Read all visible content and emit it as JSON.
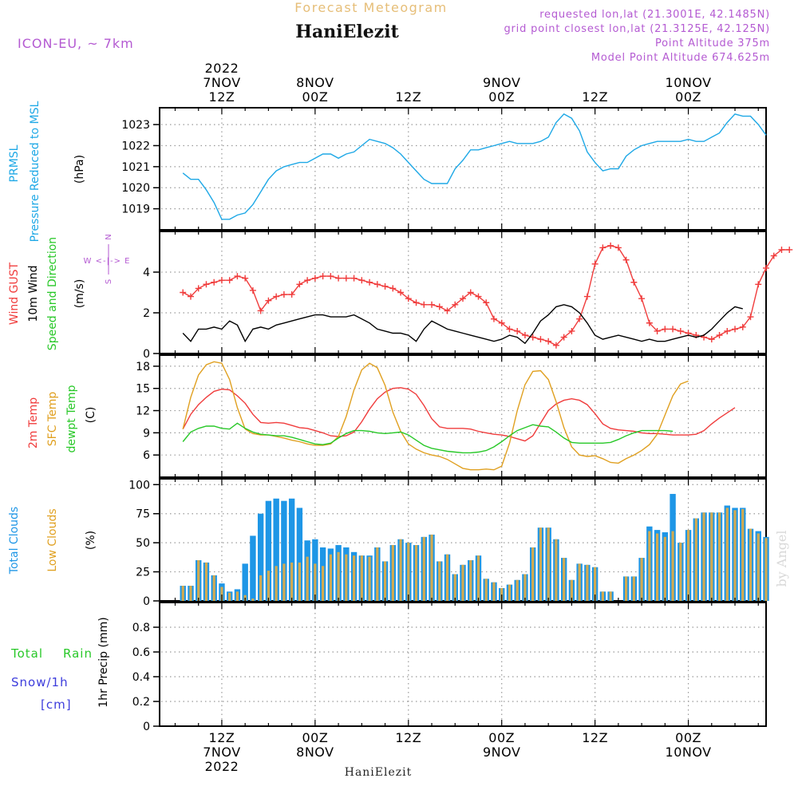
{
  "header": {
    "top_title": "Forecast Meteogram",
    "location": "HaniElezit",
    "model": "ICON-EU, ~ 7km",
    "info_lines": [
      "requested lon,lat (21.3001E, 42.1485N)",
      "grid point closest lon,lat (21.3125E, 42.125N)",
      "Point Altitude 375m",
      "Model Point Altitude 674.625m"
    ],
    "watermark": "by Angel",
    "footer_location": "HaniElezit"
  },
  "time_axis": {
    "top_labels": [
      {
        "h": 12,
        "lines": [
          "2022",
          "7NOV",
          "12Z"
        ]
      },
      {
        "h": 24,
        "lines": [
          "8NOV",
          "00Z"
        ]
      },
      {
        "h": 36,
        "lines": [
          "12Z"
        ]
      },
      {
        "h": 48,
        "lines": [
          "9NOV",
          "00Z"
        ]
      },
      {
        "h": 60,
        "lines": [
          "12Z"
        ]
      },
      {
        "h": 72,
        "lines": [
          "10NOV",
          "00Z"
        ]
      }
    ],
    "bottom_labels": [
      {
        "h": 12,
        "lines": [
          "12Z",
          "7NOV",
          "2022"
        ]
      },
      {
        "h": 24,
        "lines": [
          "00Z",
          "8NOV"
        ]
      },
      {
        "h": 36,
        "lines": [
          "12Z"
        ]
      },
      {
        "h": 48,
        "lines": [
          "00Z",
          "9NOV"
        ]
      },
      {
        "h": 60,
        "lines": [
          "12Z"
        ]
      },
      {
        "h": 72,
        "lines": [
          "00Z",
          "10NOV"
        ]
      }
    ]
  },
  "panels": {
    "pressure": {
      "label1": "PRMSL",
      "label2": "Pressure Reduced to MSL",
      "unit": "(hPa)"
    },
    "wind": {
      "label_gust": "Wind GUST",
      "label_wind": "10m Wind",
      "label_dir": "Speed and Direction",
      "unit": "(m/s)",
      "compass": {
        "n": "N",
        "s": "S",
        "row": "W <-|-> E"
      }
    },
    "temp": {
      "label_2m": "2m Temp",
      "label_sfc": "SFC Temp",
      "label_dew": "dewpt Temp",
      "unit": "(C)"
    },
    "clouds": {
      "label_total": "Total Clouds",
      "label_low": "Low Clouds",
      "unit": "(%)"
    },
    "precip": {
      "label_total": "Total",
      "label_rain": "Rain",
      "label_snow": "Snow/1h",
      "label_cm": "[cm]",
      "ylabel": "1hr Precip (mm)"
    }
  },
  "colors": {
    "pressure": "#1ea8e6",
    "gust": "#f03c3c",
    "wind": "#000000",
    "t2m": "#f03c3c",
    "sfc": "#e0a020",
    "dew": "#28c828",
    "total_clouds": "#1e96e6",
    "low_clouds": "#d2aa50",
    "header_purple": "#b45ad2",
    "header_orange": "#e6be78",
    "rain_green": "#28c828",
    "snow_blue": "#3c3cdc"
  },
  "chart_data": [
    {
      "type": "line",
      "title": "PRMSL Pressure Reduced to MSL",
      "ylabel": "(hPa)",
      "ylim": [
        1018,
        1023.8
      ],
      "yticks": [
        1019,
        1020,
        1021,
        1022,
        1023
      ],
      "x_hours_start": 7,
      "x_step_h": 1,
      "series": [
        {
          "name": "PRMSL",
          "values": [
            1020.7,
            1020.4,
            1020.4,
            1019.9,
            1019.3,
            1018.5,
            1018.5,
            1018.7,
            1018.8,
            1019.2,
            1019.8,
            1020.4,
            1020.8,
            1021.0,
            1021.1,
            1021.2,
            1021.2,
            1021.4,
            1021.6,
            1021.6,
            1021.4,
            1021.6,
            1021.7,
            1022.0,
            1022.3,
            1022.2,
            1022.1,
            1021.9,
            1021.6,
            1021.2,
            1020.8,
            1020.4,
            1020.2,
            1020.2,
            1020.2,
            1020.9,
            1021.3,
            1021.8,
            1021.8,
            1021.9,
            1022.0,
            1022.1,
            1022.2,
            1022.1,
            1022.1,
            1022.1,
            1022.2,
            1022.4,
            1023.1,
            1023.5,
            1023.3,
            1022.7,
            1021.7,
            1021.2,
            1020.8,
            1020.9,
            1020.9,
            1021.5,
            1021.8,
            1022.0,
            1022.1,
            1022.2,
            1022.2,
            1022.2,
            1022.2,
            1022.3,
            1022.2,
            1022.2,
            1022.4,
            1022.6,
            1023.1,
            1023.5,
            1023.4,
            1023.4,
            1023.0,
            1022.5
          ]
        }
      ]
    },
    {
      "type": "line",
      "title": "Wind GUST / 10m Wind Speed and Direction",
      "ylabel": "(m/s)",
      "ylim": [
        0,
        6
      ],
      "yticks": [
        0,
        2,
        4
      ],
      "x_hours_start": 7,
      "x_step_h": 1,
      "series": [
        {
          "name": "Wind GUST",
          "values": [
            3.0,
            2.8,
            3.2,
            3.4,
            3.5,
            3.6,
            3.6,
            3.8,
            3.7,
            3.1,
            2.1,
            2.6,
            2.8,
            2.9,
            2.9,
            3.4,
            3.6,
            3.7,
            3.8,
            3.8,
            3.7,
            3.7,
            3.7,
            3.6,
            3.5,
            3.4,
            3.3,
            3.2,
            3.0,
            2.7,
            2.5,
            2.4,
            2.4,
            2.3,
            2.1,
            2.4,
            2.7,
            3.0,
            2.8,
            2.5,
            1.7,
            1.5,
            1.2,
            1.1,
            0.9,
            0.8,
            0.7,
            0.6,
            0.4,
            0.8,
            1.1,
            1.7,
            2.8,
            4.4,
            5.2,
            5.3,
            5.2,
            4.6,
            3.5,
            2.7,
            1.5,
            1.1,
            1.2,
            1.2,
            1.1,
            1.0,
            0.9,
            0.8,
            0.7,
            0.9,
            1.1,
            1.2,
            1.3,
            1.8,
            3.4,
            4.2,
            4.8,
            5.1,
            5.1
          ]
        },
        {
          "name": "10m Wind",
          "values": [
            1.0,
            0.6,
            1.2,
            1.2,
            1.3,
            1.2,
            1.6,
            1.4,
            0.6,
            1.2,
            1.3,
            1.2,
            1.4,
            1.5,
            1.6,
            1.7,
            1.8,
            1.9,
            1.9,
            1.8,
            1.8,
            1.8,
            1.9,
            1.7,
            1.5,
            1.2,
            1.1,
            1.0,
            1.0,
            0.9,
            0.6,
            1.2,
            1.6,
            1.4,
            1.2,
            1.1,
            1.0,
            0.9,
            0.8,
            0.7,
            0.6,
            0.7,
            0.9,
            0.8,
            0.5,
            1.0,
            1.6,
            1.9,
            2.3,
            2.4,
            2.3,
            2.0,
            1.5,
            0.9,
            0.7,
            0.8,
            0.9,
            0.8,
            0.7,
            0.6,
            0.7,
            0.6,
            0.6,
            0.7,
            0.8,
            0.9,
            0.8,
            0.9,
            1.2,
            1.6,
            2.0,
            2.3,
            2.2
          ]
        }
      ]
    },
    {
      "type": "line",
      "title": "2m Temp / SFC Temp / dewpt Temp",
      "ylabel": "(C)",
      "ylim": [
        3,
        19.5
      ],
      "yticks": [
        6,
        9,
        12,
        15,
        18
      ],
      "x_hours_start": 7,
      "x_step_h": 1,
      "series": [
        {
          "name": "2m Temp",
          "values": [
            9.5,
            11.5,
            12.8,
            13.8,
            14.6,
            14.9,
            14.8,
            14.0,
            13.0,
            11.5,
            10.4,
            10.3,
            10.4,
            10.3,
            10.0,
            9.7,
            9.6,
            9.3,
            9.0,
            8.6,
            8.5,
            8.6,
            9.1,
            10.5,
            12.2,
            13.6,
            14.5,
            15.0,
            15.1,
            14.9,
            14.2,
            12.7,
            10.9,
            9.8,
            9.6,
            9.6,
            9.6,
            9.5,
            9.2,
            9.0,
            8.8,
            8.7,
            8.5,
            8.2,
            7.9,
            8.6,
            10.3,
            12.0,
            12.9,
            13.4,
            13.6,
            13.4,
            12.8,
            11.6,
            10.2,
            9.6,
            9.4,
            9.3,
            9.2,
            9.0,
            8.9,
            8.9,
            8.8,
            8.7,
            8.7,
            8.7,
            8.8,
            9.3,
            10.2,
            11.0,
            11.7,
            12.4
          ]
        },
        {
          "name": "SFC Temp",
          "values": [
            9.5,
            13.8,
            16.8,
            18.2,
            18.6,
            18.4,
            16.2,
            12.4,
            9.5,
            8.9,
            8.7,
            8.7,
            8.5,
            8.3,
            8.0,
            7.8,
            7.5,
            7.3,
            7.3,
            7.5,
            8.5,
            11.2,
            14.8,
            17.5,
            18.4,
            17.8,
            15.4,
            11.8,
            9.2,
            7.5,
            6.8,
            6.3,
            6.0,
            5.8,
            5.4,
            4.8,
            4.2,
            4.0,
            4.0,
            4.1,
            4.0,
            4.5,
            7.6,
            12.0,
            15.5,
            17.3,
            17.4,
            16.2,
            13.2,
            9.7,
            7.1,
            6.0,
            5.8,
            5.9,
            5.5,
            5.0,
            4.9,
            5.5,
            6.0,
            6.6,
            7.4,
            8.8,
            11.4,
            14.0,
            15.6,
            16.0
          ]
        },
        {
          "name": "dewpt Temp",
          "values": [
            7.8,
            9.1,
            9.6,
            9.9,
            9.9,
            9.6,
            9.5,
            10.3,
            9.6,
            9.1,
            8.8,
            8.7,
            8.6,
            8.6,
            8.4,
            8.1,
            7.8,
            7.5,
            7.4,
            7.6,
            8.3,
            8.9,
            9.3,
            9.3,
            9.2,
            9.0,
            8.9,
            9.0,
            9.1,
            8.7,
            8.0,
            7.3,
            6.9,
            6.7,
            6.5,
            6.4,
            6.3,
            6.3,
            6.4,
            6.6,
            7.1,
            7.8,
            8.6,
            9.3,
            9.7,
            10.1,
            9.9,
            9.8,
            9.1,
            8.3,
            7.7,
            7.6,
            7.6,
            7.6,
            7.6,
            7.7,
            8.1,
            8.6,
            9.0,
            9.3,
            9.3,
            9.3,
            9.3,
            9.2
          ]
        }
      ]
    },
    {
      "type": "bar",
      "title": "Total Clouds / Low Clouds",
      "ylabel": "(%)",
      "ylim": [
        0,
        105
      ],
      "yticks": [
        0,
        25,
        50,
        75,
        100
      ],
      "x_hours_start": 7,
      "x_step_h": 1,
      "series": [
        {
          "name": "Total Clouds",
          "values": [
            13,
            13,
            35,
            33,
            22,
            15,
            8,
            10,
            32,
            56,
            75,
            86,
            88,
            86,
            88,
            80,
            52,
            53,
            46,
            45,
            48,
            46,
            42,
            39,
            39,
            46,
            34,
            48,
            53,
            50,
            48,
            55,
            57,
            34,
            40,
            23,
            31,
            35,
            39,
            19,
            16,
            11,
            14,
            18,
            23,
            46,
            63,
            63,
            53,
            37,
            18,
            32,
            31,
            29,
            8,
            8,
            0,
            21,
            21,
            37,
            64,
            61,
            59,
            92,
            50,
            61,
            71,
            76,
            76,
            76,
            82,
            80,
            80,
            62,
            60,
            55
          ]
        },
        {
          "name": "Low Clouds",
          "values": [
            13,
            13,
            35,
            33,
            22,
            12,
            7,
            8,
            5,
            2,
            22,
            26,
            30,
            32,
            33,
            33,
            38,
            32,
            30,
            40,
            42,
            40,
            39,
            39,
            38,
            46,
            34,
            48,
            53,
            50,
            48,
            55,
            57,
            34,
            40,
            23,
            31,
            35,
            39,
            19,
            16,
            11,
            14,
            18,
            23,
            46,
            63,
            63,
            53,
            37,
            18,
            32,
            31,
            29,
            8,
            8,
            0,
            21,
            21,
            37,
            60,
            58,
            55,
            60,
            50,
            61,
            71,
            76,
            76,
            76,
            80,
            78,
            79,
            62,
            58,
            54
          ]
        }
      ]
    },
    {
      "type": "line",
      "title": "1hr Precip (mm)",
      "ylabel": "1hr Precip (mm)",
      "ylim": [
        0,
        1
      ],
      "yticks": [
        0,
        0.2,
        0.4,
        0.6,
        0.8
      ],
      "series": []
    }
  ]
}
